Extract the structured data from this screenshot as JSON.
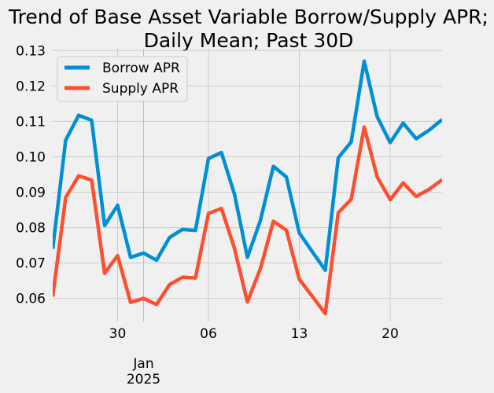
{
  "chart_data": {
    "type": "line",
    "title": "Trend of Base Asset Variable Borrow/Supply APR;",
    "subtitle": "Daily Mean; Past 30D",
    "xlabel": "",
    "ylabel": "",
    "x": [
      -4,
      -3,
      -2,
      -1,
      0,
      1,
      2,
      3,
      4,
      5,
      6,
      7,
      8,
      9,
      10,
      11,
      12,
      13,
      14,
      15,
      16,
      17,
      18,
      19,
      20,
      21,
      22,
      23,
      24,
      25,
      26
    ],
    "xlim": [
      -4,
      26
    ],
    "ylim": [
      0.0535,
      0.1305
    ],
    "grid": true,
    "legend_position": "upper-left",
    "x_ticks": [
      {
        "value": 1,
        "label": "30"
      },
      {
        "value": 8,
        "label": "06"
      },
      {
        "value": 15,
        "label": "13"
      },
      {
        "value": 22,
        "label": "20"
      }
    ],
    "x_minor_gridline_value": 3,
    "month_label": {
      "value": 3,
      "line1": "Jan",
      "line2": "2025"
    },
    "y_ticks": [
      0.06,
      0.07,
      0.08,
      0.09,
      0.1,
      0.11,
      0.12,
      0.13
    ],
    "y_tick_labels": [
      "0.06",
      "0.07",
      "0.08",
      "0.09",
      "0.10",
      "0.11",
      "0.12",
      "0.13"
    ],
    "series": [
      {
        "name": "Borrow APR",
        "color": "#008fd5",
        "values": [
          0.074,
          0.1047,
          0.1117,
          0.1103,
          0.0806,
          0.0863,
          0.0716,
          0.0728,
          0.0708,
          0.0772,
          0.0795,
          0.0792,
          0.0995,
          0.1012,
          0.0895,
          0.0716,
          0.082,
          0.0973,
          0.0943,
          0.0785,
          0.0732,
          0.068,
          0.0997,
          0.1042,
          0.127,
          0.1113,
          0.104,
          0.1095,
          0.1051,
          0.1075,
          0.1105
        ]
      },
      {
        "name": "Supply APR",
        "color": "#fc4f30",
        "values": [
          0.0605,
          0.0885,
          0.0946,
          0.0934,
          0.0671,
          0.0721,
          0.0589,
          0.06,
          0.0583,
          0.0639,
          0.066,
          0.0658,
          0.084,
          0.0854,
          0.0742,
          0.059,
          0.0684,
          0.0818,
          0.0793,
          0.0654,
          0.0606,
          0.0557,
          0.0842,
          0.088,
          0.1084,
          0.0943,
          0.0879,
          0.0926,
          0.0888,
          0.0908,
          0.0935
        ]
      }
    ]
  }
}
